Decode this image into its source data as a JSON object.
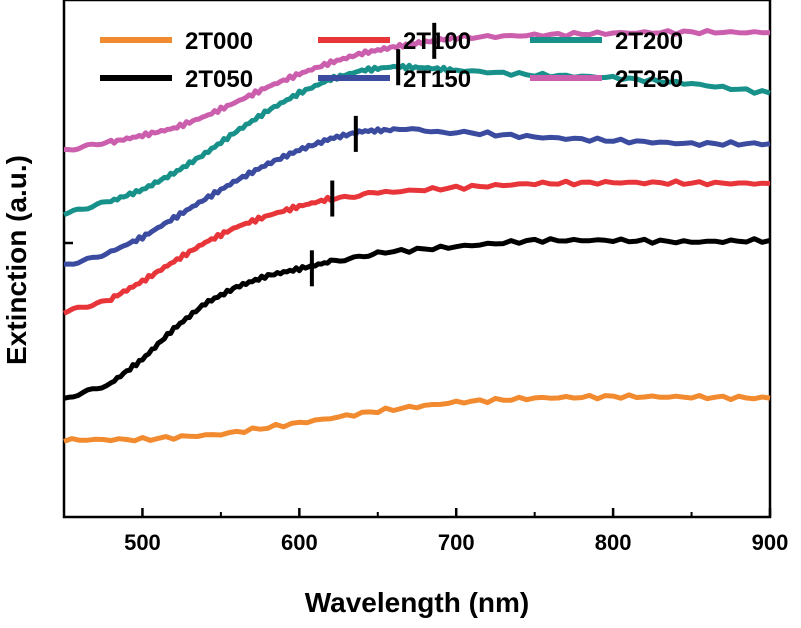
{
  "chart_data": {
    "type": "line",
    "xlabel": "Wavelength (nm)",
    "ylabel": "Extinction (a.u.)",
    "xlim": [
      450,
      900
    ],
    "ylim": [
      0,
      1
    ],
    "xticks": [
      500,
      600,
      700,
      800,
      900
    ],
    "y_tick_labels_shown": false,
    "grid": false,
    "legend": {
      "position": "top",
      "columns": 3
    },
    "series": [
      {
        "name": "2T000",
        "color": "#F28A30",
        "points": [
          [
            450,
            0.149
          ],
          [
            500,
            0.15
          ],
          [
            550,
            0.16
          ],
          [
            600,
            0.182
          ],
          [
            650,
            0.205
          ],
          [
            700,
            0.222
          ],
          [
            750,
            0.23
          ],
          [
            800,
            0.233
          ],
          [
            850,
            0.232
          ],
          [
            900,
            0.23
          ]
        ]
      },
      {
        "name": "2T050",
        "color": "#000000",
        "points": [
          [
            450,
            0.226
          ],
          [
            480,
            0.259
          ],
          [
            500,
            0.305
          ],
          [
            520,
            0.364
          ],
          [
            540,
            0.413
          ],
          [
            560,
            0.445
          ],
          [
            580,
            0.467
          ],
          [
            600,
            0.48
          ],
          [
            620,
            0.494
          ],
          [
            650,
            0.511
          ],
          [
            700,
            0.523
          ],
          [
            750,
            0.535
          ],
          [
            800,
            0.535
          ],
          [
            850,
            0.532
          ],
          [
            900,
            0.535
          ]
        ]
      },
      {
        "name": "2T100",
        "color": "#E8353A",
        "points": [
          [
            450,
            0.395
          ],
          [
            480,
            0.422
          ],
          [
            500,
            0.456
          ],
          [
            520,
            0.494
          ],
          [
            540,
            0.531
          ],
          [
            560,
            0.561
          ],
          [
            580,
            0.583
          ],
          [
            600,
            0.601
          ],
          [
            620,
            0.616
          ],
          [
            650,
            0.627
          ],
          [
            700,
            0.637
          ],
          [
            750,
            0.645
          ],
          [
            800,
            0.647
          ],
          [
            850,
            0.646
          ],
          [
            900,
            0.645
          ]
        ]
      },
      {
        "name": "2T150",
        "color": "#3B4CA0",
        "points": [
          [
            450,
            0.486
          ],
          [
            480,
            0.513
          ],
          [
            500,
            0.541
          ],
          [
            520,
            0.578
          ],
          [
            540,
            0.615
          ],
          [
            560,
            0.651
          ],
          [
            580,
            0.683
          ],
          [
            600,
            0.71
          ],
          [
            620,
            0.732
          ],
          [
            640,
            0.746
          ],
          [
            660,
            0.749
          ],
          [
            700,
            0.745
          ],
          [
            750,
            0.735
          ],
          [
            800,
            0.728
          ],
          [
            850,
            0.722
          ],
          [
            900,
            0.722
          ]
        ]
      },
      {
        "name": "2T200",
        "color": "#17918A",
        "points": [
          [
            450,
            0.588
          ],
          [
            480,
            0.611
          ],
          [
            500,
            0.633
          ],
          [
            520,
            0.665
          ],
          [
            540,
            0.703
          ],
          [
            560,
            0.746
          ],
          [
            580,
            0.786
          ],
          [
            600,
            0.82
          ],
          [
            620,
            0.847
          ],
          [
            640,
            0.864
          ],
          [
            660,
            0.871
          ],
          [
            680,
            0.869
          ],
          [
            700,
            0.864
          ],
          [
            750,
            0.855
          ],
          [
            800,
            0.85
          ],
          [
            850,
            0.838
          ],
          [
            900,
            0.82
          ]
        ]
      },
      {
        "name": "2T250",
        "color": "#CC5FAD",
        "points": [
          [
            450,
            0.71
          ],
          [
            480,
            0.725
          ],
          [
            500,
            0.738
          ],
          [
            520,
            0.752
          ],
          [
            540,
            0.775
          ],
          [
            560,
            0.803
          ],
          [
            580,
            0.832
          ],
          [
            600,
            0.857
          ],
          [
            620,
            0.879
          ],
          [
            640,
            0.897
          ],
          [
            660,
            0.909
          ],
          [
            680,
            0.919
          ],
          [
            700,
            0.927
          ],
          [
            750,
            0.932
          ],
          [
            800,
            0.936
          ],
          [
            850,
            0.938
          ],
          [
            900,
            0.937
          ]
        ]
      }
    ],
    "peak_markers": [
      {
        "series": "2T050",
        "x": 608,
        "y": 0.481
      },
      {
        "series": "2T100",
        "x": 621,
        "y": 0.616
      },
      {
        "series": "2T150",
        "x": 636,
        "y": 0.741
      },
      {
        "series": "2T200",
        "x": 663,
        "y": 0.87
      },
      {
        "series": "2T250",
        "x": 686,
        "y": 0.921
      }
    ]
  }
}
